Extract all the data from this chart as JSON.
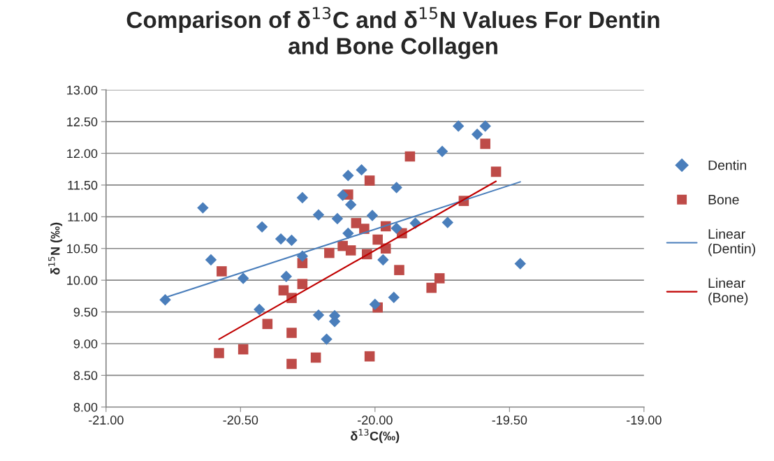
{
  "chart_data": {
    "type": "scatter",
    "title": "Comparison of δ$^{13}$C and δ$^{15}$N Values For Dentin and Bone Collagen",
    "xlabel": "δ$^{13}$C(‰)",
    "ylabel": "δ$^{15}$N (‰)",
    "xlim": [
      -21,
      -19
    ],
    "ylim": [
      8,
      13
    ],
    "xticks": [
      {
        "value": -21,
        "label": "-21.00"
      },
      {
        "value": -20.5,
        "label": "-20.50"
      },
      {
        "value": -20,
        "label": "-20.00"
      },
      {
        "value": -19.5,
        "label": "-19.50"
      },
      {
        "value": -19,
        "label": "-19.00"
      }
    ],
    "yticks": [
      {
        "value": 8,
        "label": "8.00"
      },
      {
        "value": 8.5,
        "label": "8.50"
      },
      {
        "value": 9,
        "label": "9.00"
      },
      {
        "value": 9.5,
        "label": "9.50"
      },
      {
        "value": 10,
        "label": "10.00"
      },
      {
        "value": 10.5,
        "label": "10.50"
      },
      {
        "value": 11,
        "label": "11.00"
      },
      {
        "value": 11.5,
        "label": "11.50"
      },
      {
        "value": 12,
        "label": "12.00"
      },
      {
        "value": 12.5,
        "label": "12.50"
      },
      {
        "value": 13,
        "label": "13.00"
      }
    ],
    "grid": "y",
    "legend": "right",
    "series": [
      {
        "name": "Dentin",
        "type": "scatter",
        "marker": "diamond",
        "color": "#4a7ebb",
        "x": [
          -20.78,
          -20.64,
          -20.61,
          -20.49,
          -20.43,
          -20.42,
          -20.35,
          -20.31,
          -20.33,
          -20.27,
          -20.27,
          -20.21,
          -20.21,
          -20.18,
          -20.15,
          -20.15,
          -20.1,
          -20.05,
          -20.12,
          -20.09,
          -20.14,
          -20.1,
          -20.01,
          -20.0,
          -19.97,
          -19.92,
          -19.93,
          -19.85,
          -19.73,
          -19.75,
          -19.69,
          -19.62,
          -19.59,
          -19.46,
          -19.92
        ],
        "values": [
          9.69,
          11.14,
          10.32,
          10.03,
          9.54,
          10.84,
          10.65,
          10.63,
          10.06,
          11.3,
          10.38,
          11.03,
          9.45,
          9.07,
          9.44,
          9.35,
          11.65,
          11.74,
          11.34,
          11.19,
          10.97,
          10.74,
          11.02,
          9.62,
          10.32,
          11.46,
          9.73,
          10.9,
          10.91,
          12.03,
          12.43,
          12.3,
          12.43,
          10.26,
          10.82
        ]
      },
      {
        "name": "Bone",
        "type": "scatter",
        "marker": "square",
        "color": "#be4b48",
        "x": [
          -20.57,
          -20.58,
          -20.49,
          -20.4,
          -20.34,
          -20.31,
          -20.27,
          -20.27,
          -20.31,
          -20.31,
          -20.22,
          -20.17,
          -20.12,
          -20.09,
          -20.1,
          -20.07,
          -20.04,
          -20.02,
          -20.02,
          -19.99,
          -20.03,
          -19.96,
          -19.99,
          -19.96,
          -19.9,
          -19.91,
          -19.87,
          -19.79,
          -19.76,
          -19.67,
          -19.59,
          -19.55
        ],
        "values": [
          10.14,
          8.85,
          8.91,
          9.31,
          9.84,
          9.72,
          9.94,
          10.27,
          9.17,
          8.68,
          8.78,
          10.43,
          10.54,
          10.47,
          11.35,
          10.9,
          10.81,
          11.57,
          8.8,
          9.57,
          10.41,
          10.85,
          10.64,
          10.5,
          10.74,
          10.16,
          11.95,
          9.88,
          10.03,
          11.25,
          12.15,
          11.71
        ]
      },
      {
        "name": "Linear (Dentin)",
        "type": "line",
        "marker": "none",
        "line_style": "solid",
        "color": "#4a7ebb",
        "x": [
          -20.77,
          -19.46
        ],
        "values": [
          9.74,
          11.55
        ]
      },
      {
        "name": "Linear (Bone)",
        "type": "line",
        "marker": "none",
        "line_style": "solid",
        "color": "#c00000",
        "x": [
          -20.58,
          -19.55
        ],
        "values": [
          9.07,
          11.56
        ]
      }
    ]
  }
}
